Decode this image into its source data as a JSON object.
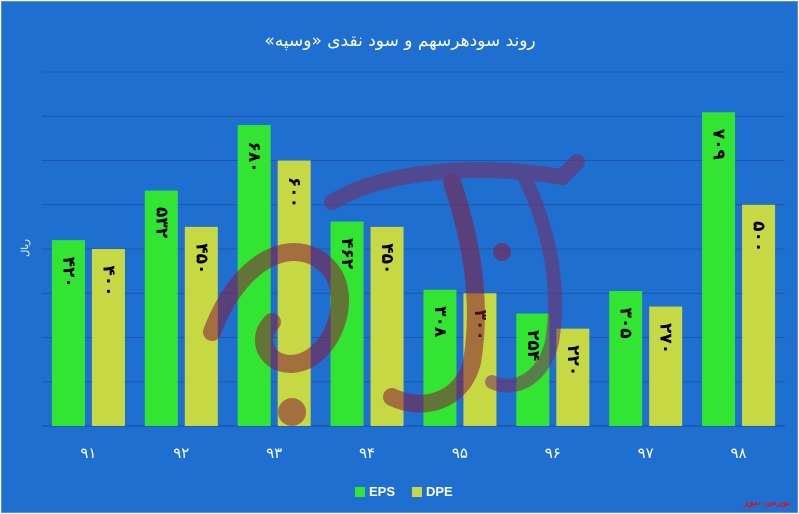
{
  "chart_data": {
    "type": "bar",
    "title": "روند سودهرسهم و سود نقدی «وسپه»",
    "ylabel": "ریال",
    "categories": [
      "۹۱",
      "۹۲",
      "۹۳",
      "۹۴",
      "۹۵",
      "۹۶",
      "۹۷",
      "۹۸"
    ],
    "series": [
      {
        "name": "EPS",
        "color": "#33e533",
        "values": [
          420,
          532,
          680,
          462,
          308,
          254,
          305,
          709
        ],
        "labels": [
          "۴۲۰",
          "۵۳۲",
          "۶۸۰",
          "۴۶۲",
          "۳۰۸",
          "۲۵۴",
          "۳۰۵",
          "۷۰۹"
        ]
      },
      {
        "name": "DPE",
        "color": "#c6d944",
        "values": [
          400,
          450,
          600,
          450,
          300,
          220,
          270,
          500
        ],
        "labels": [
          "۴۰۰",
          "۴۵۰",
          "۶۰۰",
          "۴۵۰",
          "۳۰۰",
          "۲۲۰",
          "۲۷۰",
          "۵۰۰"
        ]
      }
    ],
    "ylim": [
      0,
      800
    ],
    "grid": true,
    "legend_position": "bottom"
  },
  "watermark": {
    "text": "بورس نیوز",
    "color": "#c0392b"
  },
  "source": {
    "text": "بورس نیوز",
    "color": "#d4141f"
  },
  "colors": {
    "background": "#1f6fd0",
    "grid": "#1c57a8"
  }
}
